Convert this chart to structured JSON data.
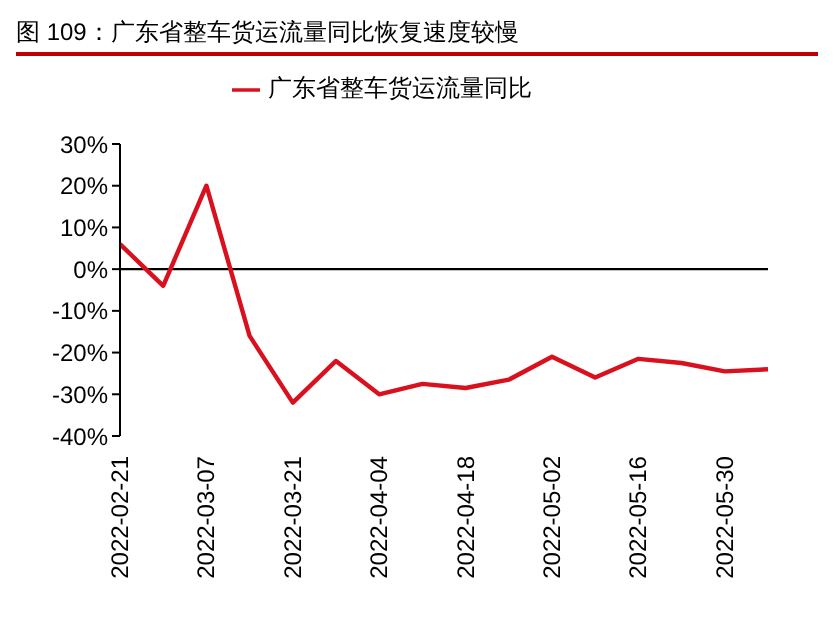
{
  "chart_data": {
    "type": "line",
    "title": "图 109：广东省整车货运流量同比恢复速度较慢",
    "categories": [
      "2022-02-21",
      null,
      "2022-03-07",
      null,
      "2022-03-21",
      null,
      "2022-04-04",
      null,
      "2022-04-18",
      null,
      "2022-05-02",
      null,
      "2022-05-16",
      null,
      "2022-05-30",
      null
    ],
    "series": [
      {
        "name": "广东省整车货运流量同比",
        "color": "#d9101e",
        "values": [
          6,
          -4,
          20,
          -16,
          -32,
          -22,
          -30,
          -27.5,
          -28.5,
          -26.5,
          -21,
          -26,
          -21.5,
          -22.5,
          -24.5,
          -24
        ]
      }
    ],
    "ylim": [
      -40,
      30
    ],
    "yticks": [
      {
        "value": 30,
        "label": "30%"
      },
      {
        "value": 20,
        "label": "20%"
      },
      {
        "value": 10,
        "label": "10%"
      },
      {
        "value": 0,
        "label": "0%"
      },
      {
        "value": -10,
        "label": "-10%"
      },
      {
        "value": -20,
        "label": "-20%"
      },
      {
        "value": -30,
        "label": "-30%"
      },
      {
        "value": -40,
        "label": "-40%"
      }
    ],
    "ref_lines": [
      {
        "axis": "y",
        "value": 0,
        "color": "#000000"
      }
    ],
    "legend": "top",
    "grid": false,
    "marker": "none",
    "line_style": "solid"
  }
}
